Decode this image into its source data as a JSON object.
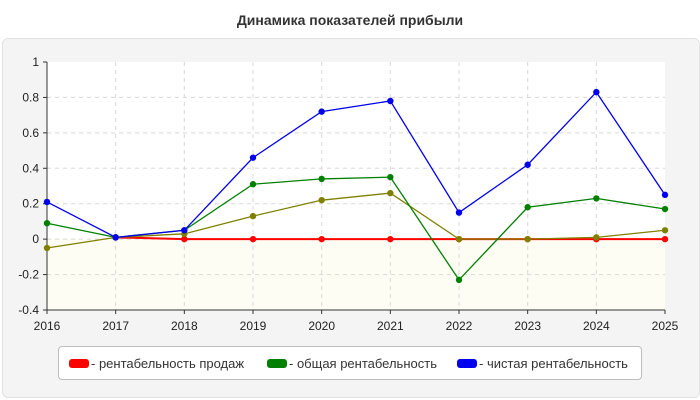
{
  "chart_data": {
    "type": "line",
    "title": "Динамика показателей прибыли",
    "x": [
      "2016",
      "2017",
      "2018",
      "2019",
      "2020",
      "2021",
      "2022",
      "2023",
      "2024",
      "2025"
    ],
    "ylim": [
      -0.4,
      1
    ],
    "yticks": [
      "1",
      "0.8",
      "0.6",
      "0.4",
      "0.2",
      "0",
      "-0.2",
      "-0.4"
    ],
    "grid": true,
    "legend": "bottom",
    "series": [
      {
        "name": "- рентабельность продаж",
        "color": "#ff0000",
        "values": [
          null,
          0.01,
          0.0,
          0.0,
          0.0,
          0.0,
          0.0,
          0.0,
          0.0,
          0.0
        ]
      },
      {
        "name": "- общая рентабельность",
        "color": "#008000",
        "values": [
          0.09,
          0.01,
          0.05,
          0.31,
          0.34,
          0.35,
          -0.23,
          0.18,
          0.23,
          0.17
        ]
      },
      {
        "name": "- чистая рентабельность",
        "color": "#0000ee",
        "values": [
          0.21,
          0.01,
          0.05,
          0.46,
          0.72,
          0.78,
          0.15,
          0.42,
          0.83,
          0.25
        ]
      },
      {
        "name": "",
        "color": "#808000",
        "values": [
          -0.05,
          0.01,
          0.03,
          0.13,
          0.22,
          0.26,
          0.0,
          0.0,
          0.01,
          0.05
        ]
      }
    ]
  }
}
